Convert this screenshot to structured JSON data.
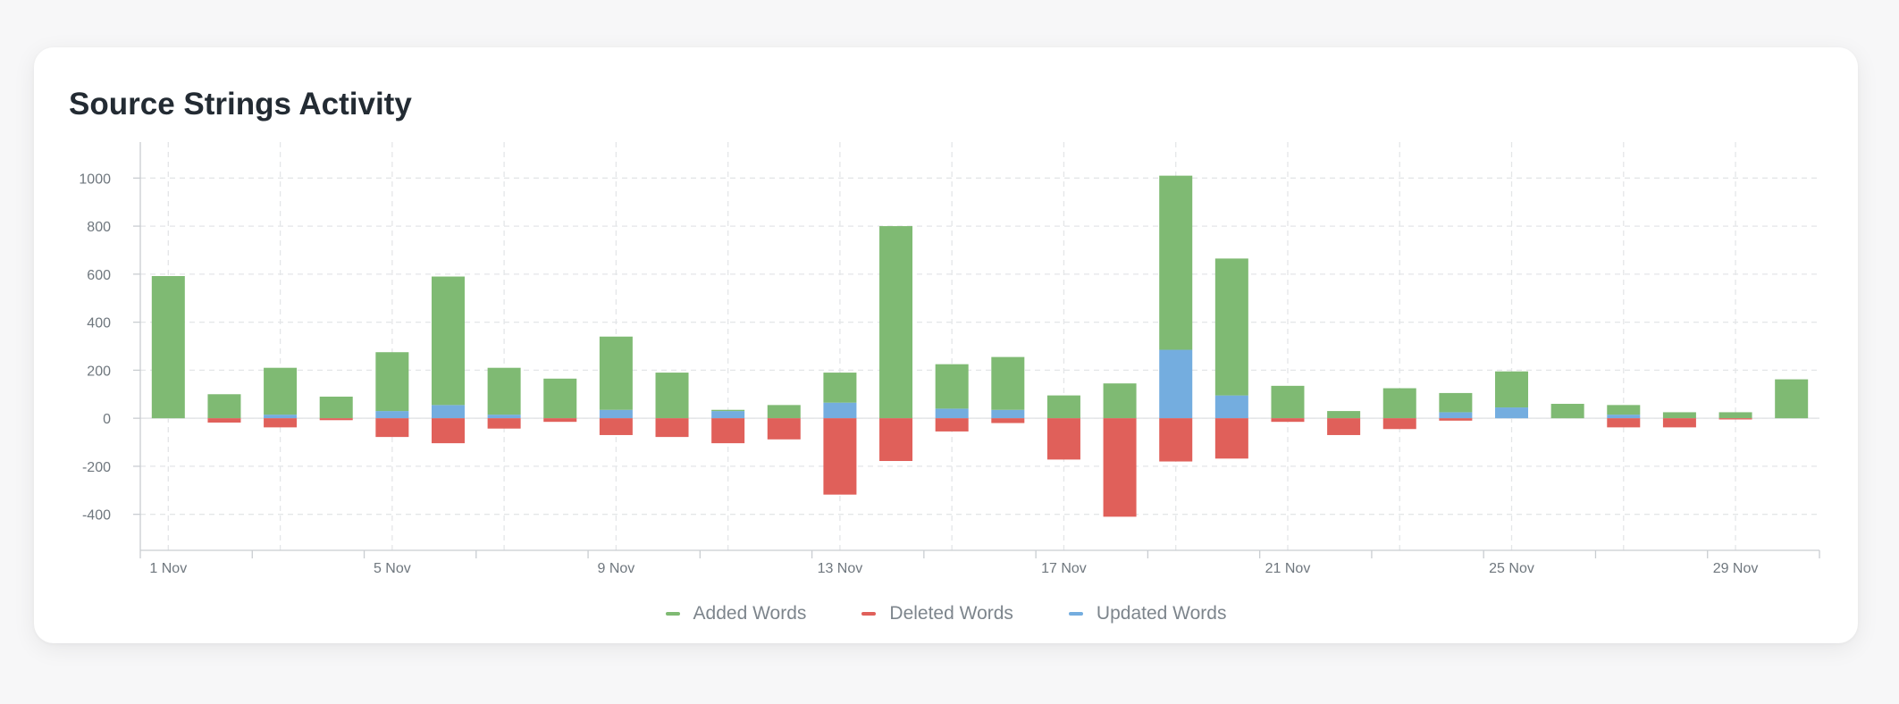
{
  "card": {
    "title": "Source Strings Activity"
  },
  "chart_data": {
    "type": "bar",
    "stacked": true,
    "title": "Source Strings Activity",
    "xlabel": "",
    "ylabel": "",
    "ylim": [
      -550,
      1150
    ],
    "yticks": [
      -400,
      -200,
      0,
      200,
      400,
      600,
      800,
      1000
    ],
    "ytick_labels": [
      "-400",
      "-200",
      "0",
      "200",
      "400",
      "600",
      "800",
      "1000"
    ],
    "categories": [
      "1 Nov",
      "2 Nov",
      "3 Nov",
      "4 Nov",
      "5 Nov",
      "6 Nov",
      "7 Nov",
      "8 Nov",
      "9 Nov",
      "10 Nov",
      "11 Nov",
      "12 Nov",
      "13 Nov",
      "14 Nov",
      "15 Nov",
      "16 Nov",
      "17 Nov",
      "18 Nov",
      "19 Nov",
      "20 Nov",
      "21 Nov",
      "22 Nov",
      "23 Nov",
      "24 Nov",
      "25 Nov",
      "26 Nov",
      "27 Nov",
      "28 Nov",
      "29 Nov",
      "30 Nov"
    ],
    "xtick_labels": [
      "1 Nov",
      "5 Nov",
      "9 Nov",
      "13 Nov",
      "17 Nov",
      "21 Nov",
      "25 Nov",
      "29 Nov"
    ],
    "grid": true,
    "legend_position": "bottom-center",
    "series": [
      {
        "name": "Updated Words",
        "color": "#74addf",
        "values": [
          0,
          0,
          15,
          0,
          30,
          55,
          15,
          0,
          35,
          0,
          30,
          0,
          65,
          0,
          40,
          35,
          0,
          0,
          285,
          95,
          0,
          0,
          0,
          25,
          45,
          0,
          15,
          0,
          0,
          0
        ]
      },
      {
        "name": "Added Words",
        "color": "#7fba73",
        "values": [
          592,
          100,
          195,
          90,
          245,
          535,
          195,
          165,
          305,
          190,
          5,
          55,
          125,
          800,
          185,
          220,
          95,
          145,
          725,
          570,
          135,
          30,
          125,
          80,
          150,
          60,
          40,
          25,
          25,
          162
        ]
      },
      {
        "name": "Deleted Words",
        "color": "#e0605a",
        "values": [
          0,
          -18,
          -38,
          -8,
          -78,
          -104,
          -43,
          -15,
          -70,
          -78,
          -104,
          -88,
          -318,
          -178,
          -55,
          -20,
          -172,
          -410,
          -180,
          -168,
          -15,
          -70,
          -45,
          -10,
          0,
          0,
          -38,
          -38,
          -5,
          0
        ]
      }
    ],
    "legend_order": [
      "Added Words",
      "Deleted Words",
      "Updated Words"
    ]
  },
  "legend": [
    {
      "label": "Added Words",
      "color": "#7fba73"
    },
    {
      "label": "Deleted Words",
      "color": "#e0605a"
    },
    {
      "label": "Updated Words",
      "color": "#74addf"
    }
  ]
}
